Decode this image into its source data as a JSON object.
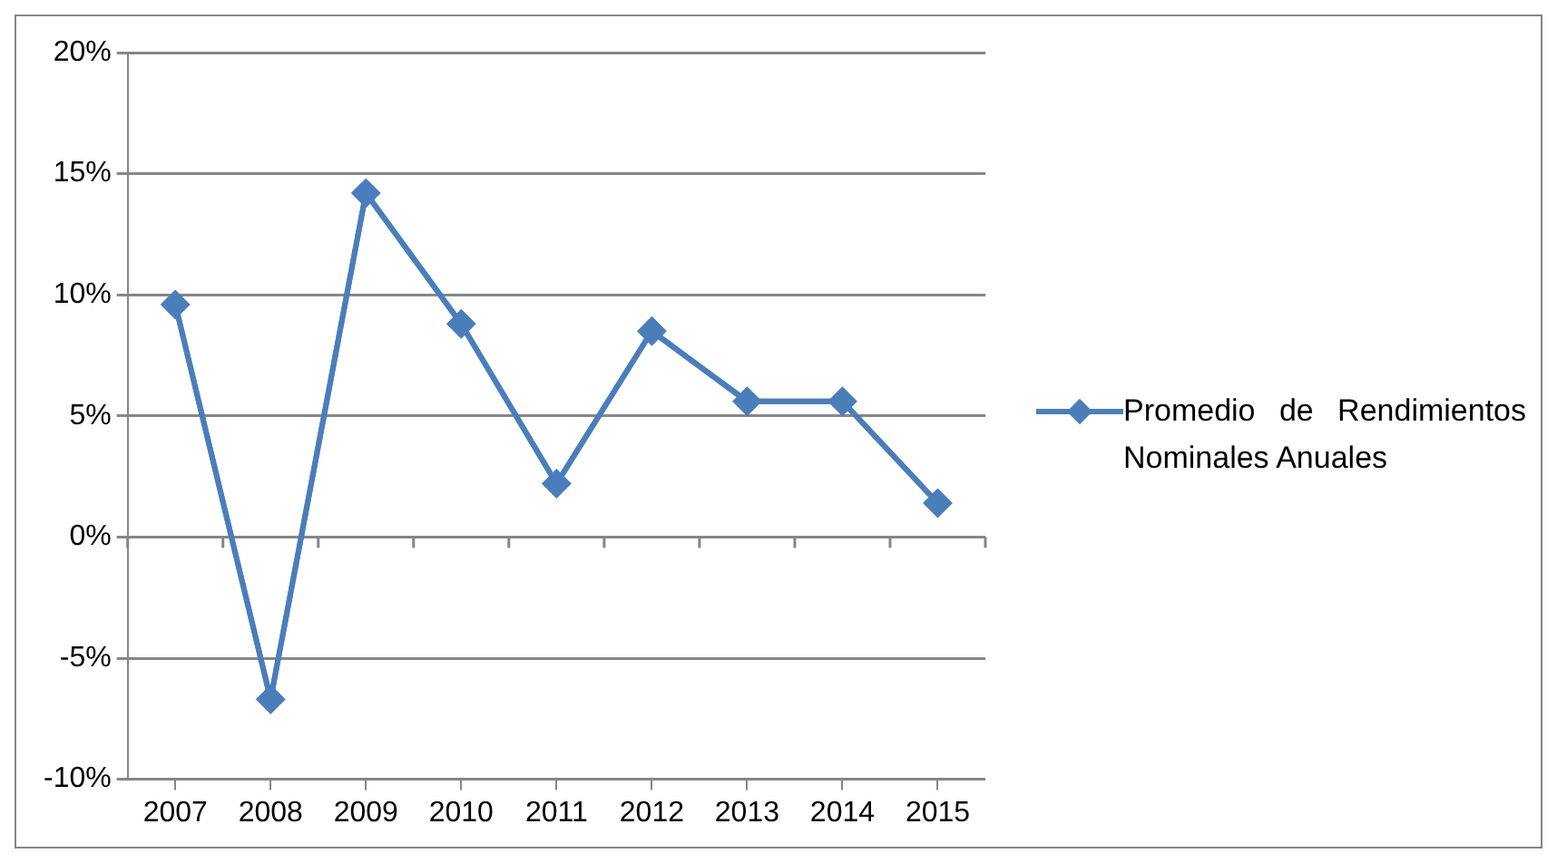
{
  "chart_data": {
    "type": "line",
    "categories": [
      "2007",
      "2008",
      "2009",
      "2010",
      "2011",
      "2012",
      "2013",
      "2014",
      "2015"
    ],
    "series": [
      {
        "name": "Promedio de Rendimientos Nominales Anuales",
        "color": "#4a7ebb",
        "values": [
          9.6,
          -6.7,
          14.2,
          8.8,
          2.2,
          8.5,
          5.6,
          5.6,
          1.4
        ]
      }
    ],
    "ylim": [
      -10,
      20
    ],
    "yticks": [
      {
        "value": -10,
        "label": "-10%"
      },
      {
        "value": -5,
        "label": "-5%"
      },
      {
        "value": 0,
        "label": "0%"
      },
      {
        "value": 5,
        "label": "5%"
      },
      {
        "value": 10,
        "label": "10%"
      },
      {
        "value": 15,
        "label": "15%"
      },
      {
        "value": 20,
        "label": "20%"
      }
    ],
    "grid": "y",
    "legend": "right",
    "marker": "diamond",
    "line_style": "solid"
  }
}
